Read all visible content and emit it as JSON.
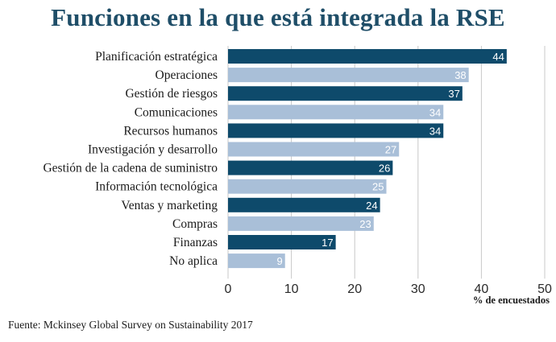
{
  "chart_data": {
    "type": "bar",
    "orientation": "horizontal",
    "title": "Funciones en la que está integrada la RSE",
    "xlabel": "% de encuestados",
    "ylabel": "",
    "xlim": [
      0,
      50
    ],
    "xticks": [
      0,
      10,
      20,
      30,
      40,
      50
    ],
    "grid": true,
    "categories": [
      "Planificación estratégica",
      "Operaciones",
      "Gestión de riesgos",
      "Comunicaciones",
      "Recursos humanos",
      "Investigación y desarrollo",
      "Gestión de la cadena de suministro",
      "Información tecnológica",
      "Ventas y marketing",
      "Compras",
      "Finanzas",
      "No aplica"
    ],
    "values": [
      44,
      38,
      37,
      34,
      34,
      27,
      26,
      25,
      24,
      23,
      17,
      9
    ],
    "colors": [
      "#0e4a6b",
      "#a9bfd8"
    ],
    "source": "Fuente: Mckinsey Global Survey on Sustainability 2017"
  }
}
